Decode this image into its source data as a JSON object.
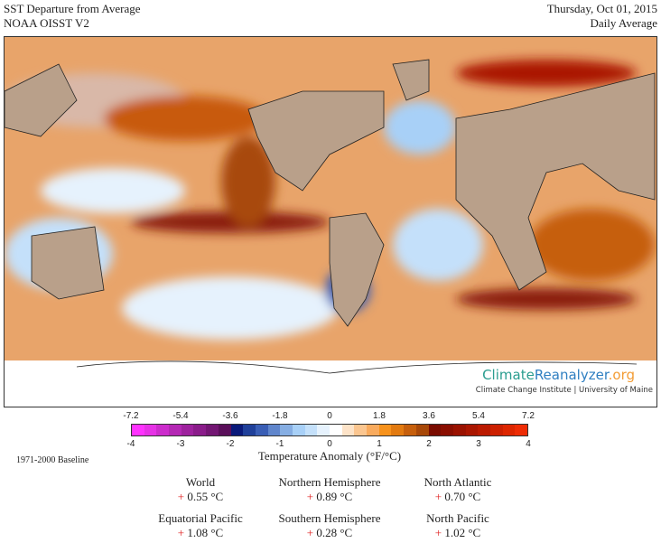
{
  "header": {
    "title": "SST Departure from Average",
    "dataset": "NOAA OISST V2",
    "date": "Thursday, Oct 01, 2015",
    "period": "Daily Average"
  },
  "brand": {
    "part1": "Climate",
    "part2": "Reanalyzer",
    "part3": ".org",
    "subtitle": "Climate Change Institute | University of Maine"
  },
  "colorbar": {
    "title": "Temperature Anomaly (°F/°C)",
    "f_ticks": [
      "-7.2",
      "-5.4",
      "-3.6",
      "-1.8",
      "0",
      "1.8",
      "3.6",
      "5.4",
      "7.2"
    ],
    "c_ticks": [
      "-4",
      "-3",
      "-2",
      "-1",
      "0",
      "1",
      "2",
      "3",
      "4"
    ],
    "range_c": [
      -4,
      4
    ],
    "colors": [
      "#ff33ff",
      "#e632e6",
      "#cc2ccc",
      "#b428b4",
      "#9e229e",
      "#8a1c8a",
      "#731673",
      "#5a0f5a",
      "#0a1a7a",
      "#20409a",
      "#3a5eb5",
      "#6086cc",
      "#86aee3",
      "#a8d0f7",
      "#c4e0fa",
      "#e6f2fd",
      "#ffffff",
      "#fde3c8",
      "#fbc690",
      "#f9ab5e",
      "#f7921c",
      "#e27a10",
      "#c65f0c",
      "#a84808",
      "#7a0c00",
      "#8a0e00",
      "#9a1200",
      "#aa1600",
      "#bb1a00",
      "#cc2000",
      "#dd2600",
      "#ee2c05"
    ]
  },
  "baseline": "1971-2000 Baseline",
  "stats": [
    {
      "label": "World",
      "sign": "+",
      "value": "0.55 °C"
    },
    {
      "label": "Northern Hemisphere",
      "sign": "+",
      "value": "0.89 °C"
    },
    {
      "label": "North Atlantic",
      "sign": "+",
      "value": "0.70 °C"
    },
    {
      "label": "Equatorial Pacific",
      "sign": "+",
      "value": "1.08 °C"
    },
    {
      "label": "Southern Hemisphere",
      "sign": "+",
      "value": "0.28 °C"
    },
    {
      "label": "North Pacific",
      "sign": "+",
      "value": "1.02 °C"
    }
  ]
}
